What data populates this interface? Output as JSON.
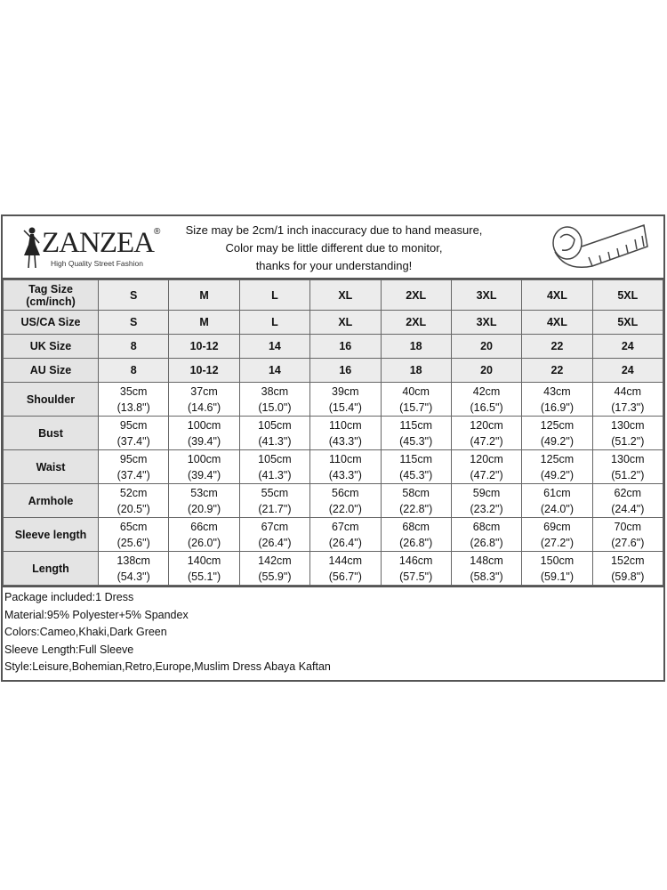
{
  "header": {
    "logo": {
      "brand": "ZANZEA",
      "registered": "®",
      "tagline": "High Quality Street Fashion"
    },
    "notice": [
      "Size may be 2cm/1 inch inaccuracy due to hand measure,",
      "Color may be little different due to monitor,",
      "thanks for your understanding!"
    ],
    "icon": "measuring-tape-icon"
  },
  "size_rows": [
    {
      "label": "Tag Size (cm/inch)",
      "values": [
        "S",
        "M",
        "L",
        "XL",
        "2XL",
        "3XL",
        "4XL",
        "5XL"
      ]
    },
    {
      "label": "US/CA Size",
      "values": [
        "S",
        "M",
        "L",
        "XL",
        "2XL",
        "3XL",
        "4XL",
        "5XL"
      ]
    },
    {
      "label": "UK Size",
      "values": [
        "8",
        "10-12",
        "14",
        "16",
        "18",
        "20",
        "22",
        "24"
      ]
    },
    {
      "label": "AU Size",
      "values": [
        "8",
        "10-12",
        "14",
        "16",
        "18",
        "20",
        "22",
        "24"
      ]
    }
  ],
  "measure_rows": [
    {
      "label": "Shoulder",
      "cm": [
        "35cm",
        "37cm",
        "38cm",
        "39cm",
        "40cm",
        "42cm",
        "43cm",
        "44cm"
      ],
      "inch": [
        "(13.8\")",
        "(14.6\")",
        "(15.0\")",
        "(15.4\")",
        "(15.7\")",
        "(16.5\")",
        "(16.9\")",
        "(17.3\")"
      ]
    },
    {
      "label": "Bust",
      "cm": [
        "95cm",
        "100cm",
        "105cm",
        "110cm",
        "115cm",
        "120cm",
        "125cm",
        "130cm"
      ],
      "inch": [
        "(37.4\")",
        "(39.4\")",
        "(41.3\")",
        "(43.3\")",
        "(45.3\")",
        "(47.2\")",
        "(49.2\")",
        "(51.2\")"
      ]
    },
    {
      "label": "Waist",
      "cm": [
        "95cm",
        "100cm",
        "105cm",
        "110cm",
        "115cm",
        "120cm",
        "125cm",
        "130cm"
      ],
      "inch": [
        "(37.4\")",
        "(39.4\")",
        "(41.3\")",
        "(43.3\")",
        "(45.3\")",
        "(47.2\")",
        "(49.2\")",
        "(51.2\")"
      ]
    },
    {
      "label": "Armhole",
      "cm": [
        "52cm",
        "53cm",
        "55cm",
        "56cm",
        "58cm",
        "59cm",
        "61cm",
        "62cm"
      ],
      "inch": [
        "(20.5\")",
        "(20.9\")",
        "(21.7\")",
        "(22.0\")",
        "(22.8\")",
        "(23.2\")",
        "(24.0\")",
        "(24.4\")"
      ]
    },
    {
      "label": "Sleeve length",
      "cm": [
        "65cm",
        "66cm",
        "67cm",
        "67cm",
        "68cm",
        "68cm",
        "69cm",
        "70cm"
      ],
      "inch": [
        "(25.6\")",
        "(26.0\")",
        "(26.4\")",
        "(26.4\")",
        "(26.8\")",
        "(26.8\")",
        "(27.2\")",
        "(27.6\")"
      ]
    },
    {
      "label": "Length",
      "cm": [
        "138cm",
        "140cm",
        "142cm",
        "144cm",
        "146cm",
        "148cm",
        "150cm",
        "152cm"
      ],
      "inch": [
        "(54.3\")",
        "(55.1\")",
        "(55.9\")",
        "(56.7\")",
        "(57.5\")",
        "(58.3\")",
        "(59.1\")",
        "(59.8\")"
      ]
    }
  ],
  "info": [
    "Package included:1 Dress",
    "Material:95% Polyester+5% Spandex",
    "Colors:Cameo,Khaki,Dark Green",
    "Sleeve Length:Full Sleeve",
    "Style:Leisure,Bohemian,Retro,Europe,Muslim Dress Abaya Kaftan"
  ]
}
